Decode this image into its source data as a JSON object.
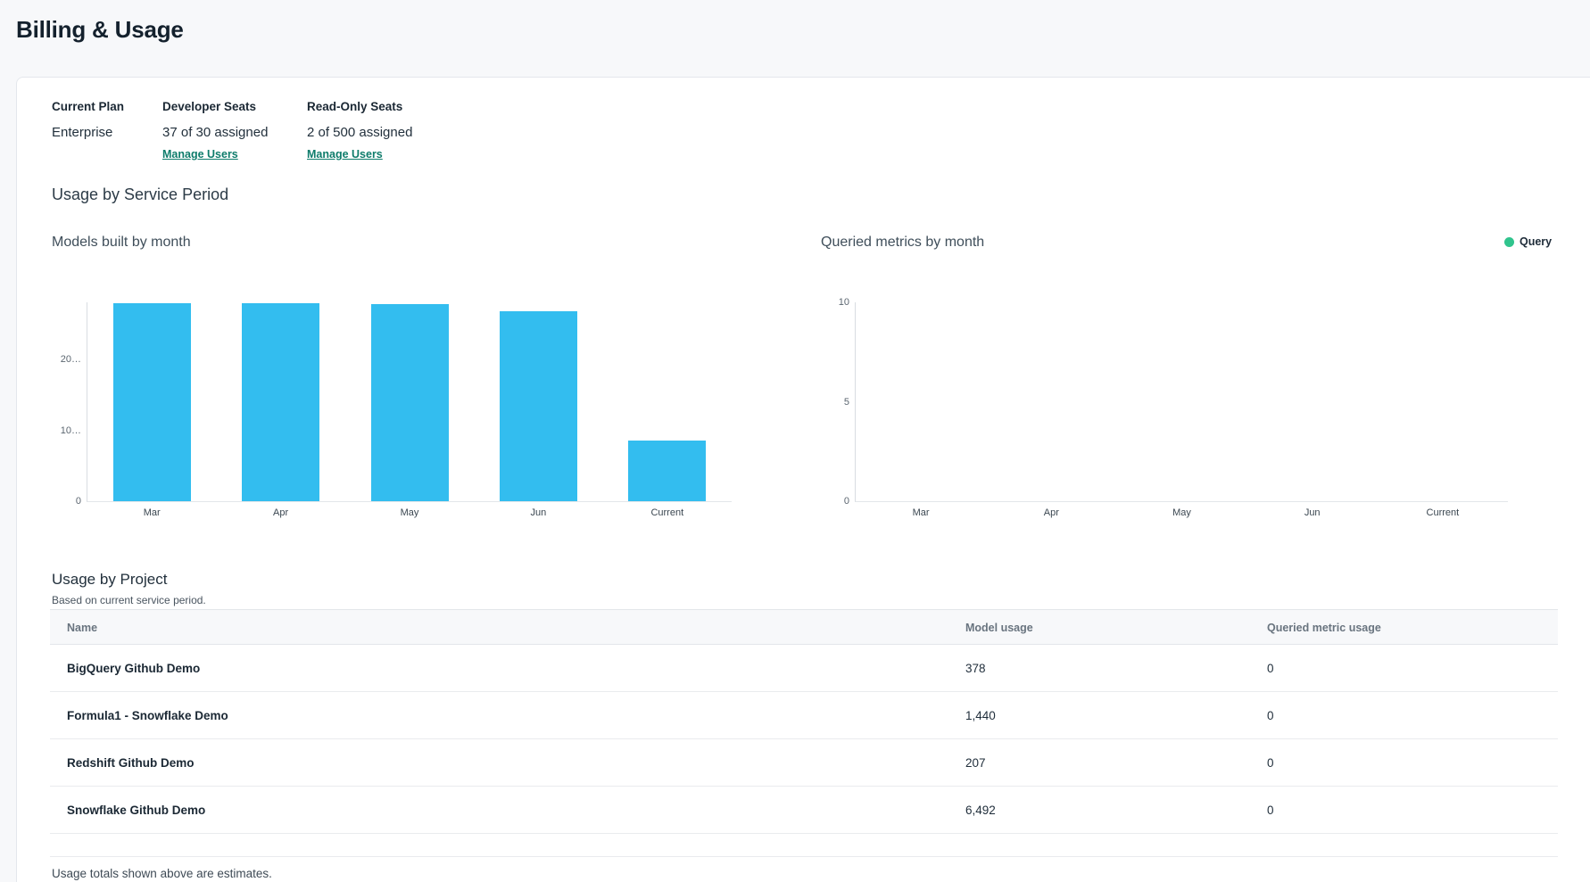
{
  "page": {
    "title": "Billing & Usage"
  },
  "plan": {
    "current_plan_label": "Current Plan",
    "current_plan_value": "Enterprise",
    "developer_seats_label": "Developer Seats",
    "developer_seats_value": "37 of 30 assigned",
    "developer_manage_link": "Manage Users",
    "readonly_seats_label": "Read-Only Seats",
    "readonly_seats_value": "2 of 500 assigned",
    "readonly_manage_link": "Manage Users"
  },
  "usage_section": {
    "title": "Usage by Service Period"
  },
  "chart_data": [
    {
      "type": "bar",
      "title": "Models built by month",
      "categories": [
        "Mar",
        "Apr",
        "May",
        "Jun",
        "Current"
      ],
      "values": [
        28000,
        27950,
        27900,
        26900,
        8600
      ],
      "xlabel": "",
      "ylabel": "",
      "ylim": [
        0,
        28100
      ],
      "ytick_values": [
        0,
        10000,
        20000
      ],
      "ytick_labels": [
        "0",
        "10…",
        "20…"
      ],
      "grid": false,
      "color": "#33bdef"
    },
    {
      "type": "bar",
      "title": "Queried metrics by month",
      "categories": [
        "Mar",
        "Apr",
        "May",
        "Jun",
        "Current"
      ],
      "values": [
        0,
        0,
        0,
        0,
        0
      ],
      "xlabel": "",
      "ylabel": "",
      "ylim": [
        0,
        10
      ],
      "ytick_values": [
        0,
        5,
        10
      ],
      "ytick_labels": [
        "0",
        "5",
        "10"
      ],
      "grid": false,
      "legend": [
        "Query"
      ],
      "legend_position": "top-right",
      "color": "#30c48d"
    }
  ],
  "project_usage": {
    "title": "Usage by Project",
    "subtitle": "Based on current service period.",
    "columns": [
      "Name",
      "Model usage",
      "Queried metric usage"
    ],
    "rows": [
      {
        "name": "BigQuery Github Demo",
        "model_usage": "378",
        "queried_metric_usage": "0"
      },
      {
        "name": "Formula1 - Snowflake Demo",
        "model_usage": "1,440",
        "queried_metric_usage": "0"
      },
      {
        "name": "Redshift Github Demo",
        "model_usage": "207",
        "queried_metric_usage": "0"
      },
      {
        "name": "Snowflake Github Demo",
        "model_usage": "6,492",
        "queried_metric_usage": "0"
      }
    ],
    "footnote": "Usage totals shown above are estimates."
  },
  "colors": {
    "bar_blue": "#33bdef",
    "legend_green": "#30c48d",
    "link_teal": "#0e7c6b",
    "page_background": "#f7f8fa",
    "card_background": "#ffffff"
  }
}
